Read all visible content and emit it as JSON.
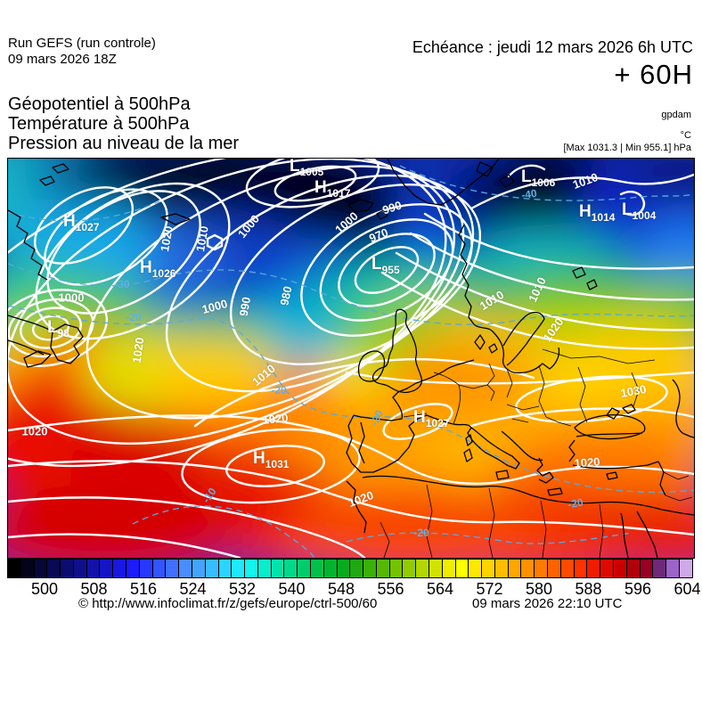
{
  "header": {
    "run_line1": "Run GEFS (run controle)",
    "run_line2": "09 mars 2026 18Z",
    "echeance": "Echéance : jeudi 12 mars 2026 6h UTC",
    "lead_time": "+ 60H"
  },
  "product": {
    "line1": "Géopotentiel à 500hPa",
    "line2": "Température à 500hPa",
    "line3": "Pression au niveau de la mer",
    "unit_geopotential": "gpdam",
    "unit_temperature": "°C",
    "pressure_range": "[Max 1031.3 | Min 955.1] hPa"
  },
  "map": {
    "pressure_systems": [
      {
        "letter": "H",
        "value": "1027"
      },
      {
        "letter": "H",
        "value": "1026"
      },
      {
        "letter": "L",
        "value": "1005"
      },
      {
        "letter": "H",
        "value": "1017"
      },
      {
        "letter": "L",
        "value": "955"
      },
      {
        "letter": "L",
        "value": "1006"
      },
      {
        "letter": "H",
        "value": "1014"
      },
      {
        "letter": "L",
        "value": "1004"
      },
      {
        "letter": "L",
        "value": "98"
      },
      {
        "letter": "H",
        "value": "1031"
      },
      {
        "letter": "H",
        "value": "1027"
      }
    ],
    "isobar_labels": [
      "1000",
      "1000",
      "1020",
      "1010",
      "1000",
      "1000",
      "990",
      "970",
      "980",
      "990",
      "1010",
      "1010",
      "1010",
      "1020",
      "1020",
      "1020",
      "1020",
      "1020",
      "1030",
      "1020",
      "1010"
    ],
    "temp_labels": [
      "-40",
      "-30",
      "-20",
      "-20",
      "-20",
      "-20",
      "-20",
      "-10"
    ]
  },
  "colorbar": {
    "ticks": [
      "500",
      "508",
      "516",
      "524",
      "532",
      "540",
      "548",
      "556",
      "564",
      "572",
      "580",
      "588",
      "596",
      "604"
    ],
    "cells": [
      "#000000",
      "#03031c",
      "#060638",
      "#090954",
      "#0c0c70",
      "#0f0f8c",
      "#1212a8",
      "#1515c4",
      "#1818e0",
      "#1b1bfc",
      "#2738ff",
      "#3354ff",
      "#3f70ff",
      "#4b8cff",
      "#43a4ff",
      "#37bcff",
      "#2bd4ff",
      "#1fe8ff",
      "#13f4ec",
      "#0aeccc",
      "#04e2ac",
      "#00d88c",
      "#00cc6c",
      "#00c04c",
      "#00b430",
      "#08aa1e",
      "#20a812",
      "#3ab008",
      "#56b800",
      "#74c200",
      "#92cc00",
      "#b2d600",
      "#d2e200",
      "#f0ee00",
      "#ffff00",
      "#ffe800",
      "#ffd200",
      "#ffbc00",
      "#ffa600",
      "#ff9000",
      "#ff7a00",
      "#ff6200",
      "#ff4a00",
      "#ff3200",
      "#f01c00",
      "#dc0a00",
      "#c80000",
      "#b0000c",
      "#980024",
      "#6e2a78",
      "#9c64c8",
      "#cfaae8"
    ]
  },
  "footer": {
    "copyright": "© http://www.infoclimat.fr/z/gefs/europe/ctrl-500/60",
    "generated": "09 mars 2026 22:10 UTC"
  }
}
